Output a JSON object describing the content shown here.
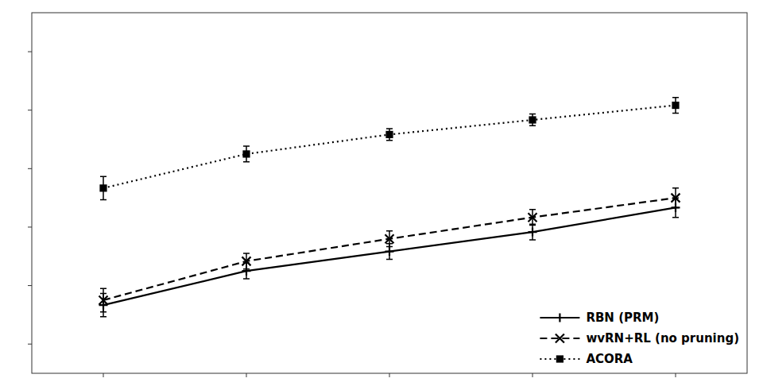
{
  "chart_data": {
    "type": "line",
    "x": [
      1,
      2,
      3,
      4,
      5
    ],
    "series": [
      {
        "name": "RBN (PRM)",
        "color": "#000000",
        "line_style": "solid",
        "marker": "plus",
        "values": [
          0.62,
          0.655,
          0.675,
          0.695,
          0.72
        ],
        "errors": [
          0.012,
          0.008,
          0.008,
          0.008,
          0.01
        ]
      },
      {
        "name": "wvRN+RL (no pruning)",
        "color": "#000000",
        "line_style": "dashed",
        "marker": "x",
        "values": [
          0.625,
          0.665,
          0.688,
          0.71,
          0.73
        ],
        "errors": [
          0.012,
          0.008,
          0.008,
          0.008,
          0.01
        ]
      },
      {
        "name": "ACORA",
        "color": "#000000",
        "line_style": "dotted",
        "marker": "square",
        "values": [
          0.74,
          0.775,
          0.795,
          0.81,
          0.825
        ],
        "errors": [
          0.012,
          0.008,
          0.006,
          0.006,
          0.008
        ]
      }
    ],
    "xlim": [
      0.5,
      5.5
    ],
    "ylim": [
      0.55,
      0.92
    ],
    "xticks": [
      1,
      2,
      3,
      4,
      5
    ],
    "yticks": [
      0.58,
      0.64,
      0.7,
      0.76,
      0.82,
      0.88
    ],
    "tick_labels": false,
    "grid": false,
    "legend": "lower right"
  }
}
